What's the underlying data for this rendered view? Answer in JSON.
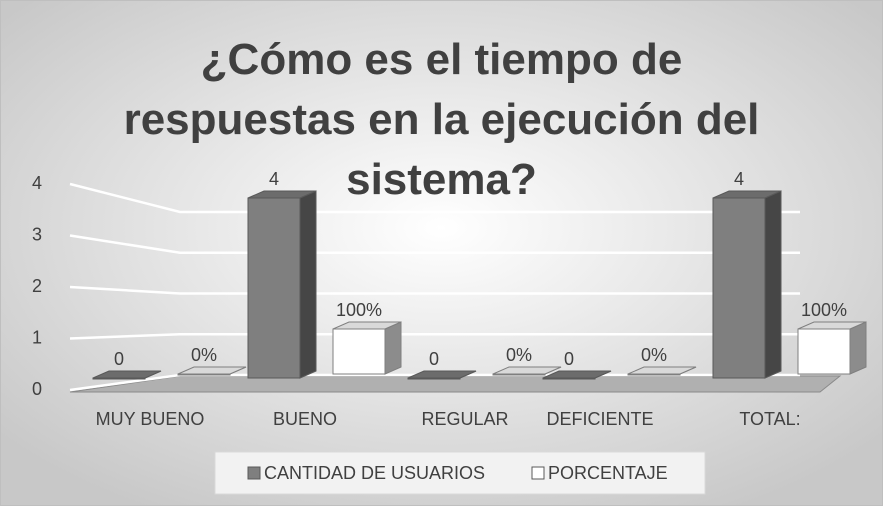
{
  "chart_data": {
    "type": "bar3d",
    "title": "¿Cómo es el tiempo de respuestas en la ejecución del sistema?",
    "categories": [
      "MUY BUENO",
      "BUENO",
      "REGULAR",
      "DEFICIENTE",
      "TOTAL:"
    ],
    "series": [
      {
        "name": "CANTIDAD DE USUARIOS",
        "color": "#7f7f7f",
        "values": [
          0,
          4,
          0,
          0,
          4
        ]
      },
      {
        "name": "PORCENTAJE",
        "color": "#ffffff",
        "values": [
          0,
          1,
          0,
          0,
          1
        ],
        "value_labels": [
          "0%",
          "100%",
          "0%",
          "0%",
          "100%"
        ]
      }
    ],
    "ylim": [
      0,
      4
    ],
    "yticks": [
      0,
      1,
      2,
      3,
      4
    ],
    "grid": true,
    "legend": "bottom"
  }
}
